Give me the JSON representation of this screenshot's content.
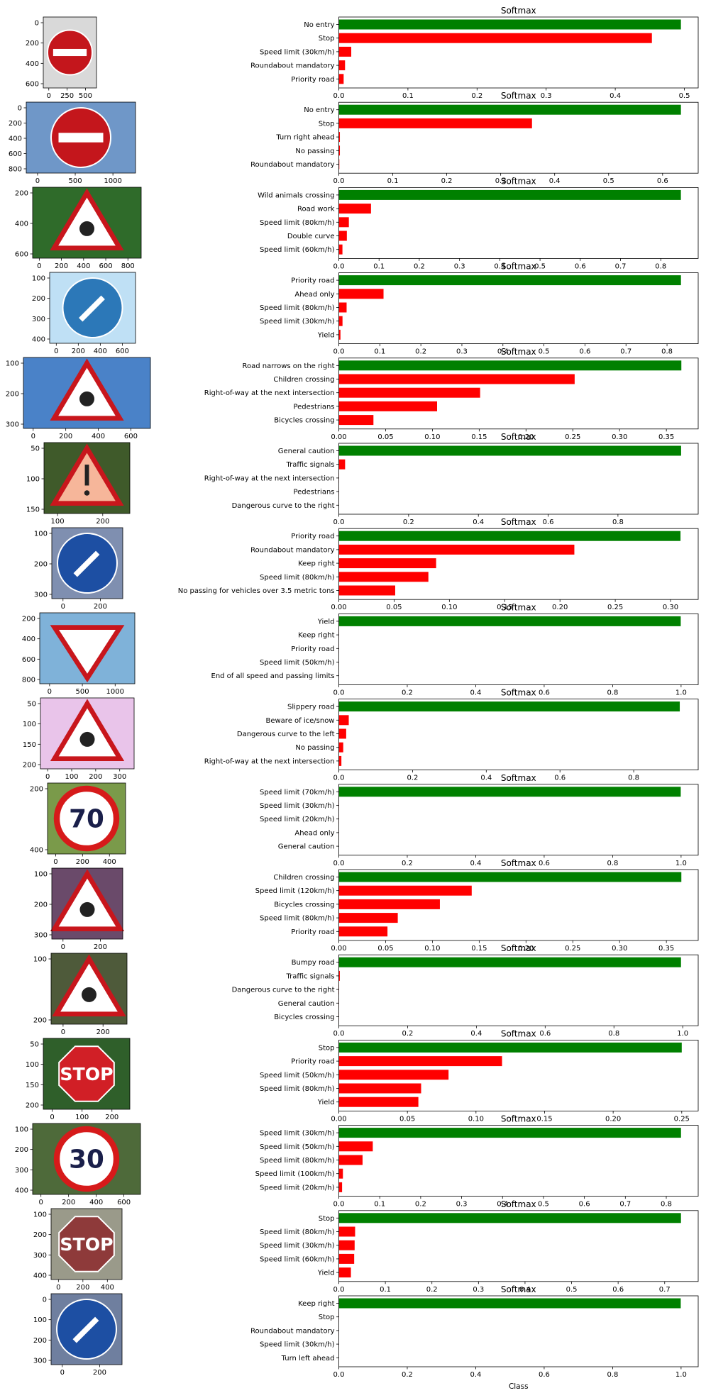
{
  "colors": {
    "top": "#008000",
    "other": "#ff0000",
    "axis": "#000000",
    "background": "#ffffff"
  },
  "x_axis_label": "Class",
  "chart_data": [
    {
      "type": "bar",
      "orientation": "horizontal",
      "title": "Softmax",
      "categories": [
        "No entry",
        "Stop",
        "Speed limit (30km/h)",
        "Roundabout mandatory",
        "Priority road"
      ],
      "values": [
        0.495,
        0.453,
        0.018,
        0.009,
        0.007
      ],
      "xlim": [
        0,
        0.52
      ],
      "xticks": [
        "0.0",
        "0.1",
        "0.2",
        "0.3",
        "0.4",
        "0.5"
      ],
      "image": {
        "sign": "no-entry",
        "xticks": [
          "0",
          "250",
          "500"
        ],
        "yticks": [
          "0",
          "200",
          "400",
          "600"
        ]
      }
    },
    {
      "type": "bar",
      "orientation": "horizontal",
      "title": "Softmax",
      "categories": [
        "No entry",
        "Stop",
        "Turn right ahead",
        "No passing",
        "Roundabout mandatory"
      ],
      "values": [
        0.634,
        0.358,
        0.002,
        0.002,
        0.001
      ],
      "xlim": [
        0,
        0.666
      ],
      "xticks": [
        "0.0",
        "0.1",
        "0.2",
        "0.3",
        "0.4",
        "0.5",
        "0.6"
      ],
      "image": {
        "sign": "no-entry-sky",
        "xticks": [
          "0",
          "500",
          "1000"
        ],
        "yticks": [
          "0",
          "200",
          "400",
          "600",
          "800"
        ]
      }
    },
    {
      "type": "bar",
      "orientation": "horizontal",
      "title": "Softmax",
      "categories": [
        "Wild animals crossing",
        "Road work",
        "Speed limit (80km/h)",
        "Double curve",
        "Speed limit (60km/h)"
      ],
      "values": [
        0.85,
        0.08,
        0.025,
        0.02,
        0.009
      ],
      "xlim": [
        0,
        0.893
      ],
      "xticks": [
        "0.0",
        "0.1",
        "0.2",
        "0.3",
        "0.4",
        "0.5",
        "0.6",
        "0.7",
        "0.8"
      ],
      "image": {
        "sign": "road-work",
        "xticks": [
          "0",
          "200",
          "400",
          "600",
          "800"
        ],
        "yticks": [
          "200",
          "400",
          "600"
        ]
      }
    },
    {
      "type": "bar",
      "orientation": "horizontal",
      "title": "Softmax",
      "categories": [
        "Priority road",
        "Ahead only",
        "Speed limit (80km/h)",
        "Speed limit (30km/h)",
        "Yield"
      ],
      "values": [
        0.834,
        0.109,
        0.019,
        0.009,
        0.004
      ],
      "xlim": [
        0,
        0.876
      ],
      "xticks": [
        "0.0",
        "0.1",
        "0.2",
        "0.3",
        "0.4",
        "0.5",
        "0.6",
        "0.7",
        "0.8"
      ],
      "image": {
        "sign": "turn-right",
        "xticks": [
          "0",
          "200",
          "400",
          "600"
        ],
        "yticks": [
          "100",
          "200",
          "300",
          "400"
        ]
      }
    },
    {
      "type": "bar",
      "orientation": "horizontal",
      "title": "Softmax",
      "categories": [
        "Road narrows on the right",
        "Children crossing",
        "Right-of-way at the next intersection",
        "Pedestrians",
        "Bicycles crossing"
      ],
      "values": [
        0.366,
        0.252,
        0.151,
        0.105,
        0.037
      ],
      "xlim": [
        0,
        0.384
      ],
      "xticks": [
        "0.00",
        "0.05",
        "0.10",
        "0.15",
        "0.20",
        "0.25",
        "0.30",
        "0.35"
      ],
      "image": {
        "sign": "children-sky",
        "xticks": [
          "0",
          "200",
          "400",
          "600"
        ],
        "yticks": [
          "100",
          "200",
          "300"
        ]
      }
    },
    {
      "type": "bar",
      "orientation": "horizontal",
      "title": "Softmax",
      "categories": [
        "General caution",
        "Traffic signals",
        "Right-of-way at the next intersection",
        "Pedestrians",
        "Dangerous curve to the right"
      ],
      "values": [
        0.981,
        0.018,
        0.0005,
        0.0003,
        0.0002
      ],
      "xlim": [
        0,
        1.03
      ],
      "xticks": [
        "0.0",
        "0.2",
        "0.4",
        "0.6",
        "0.8"
      ],
      "image": {
        "sign": "general-caution",
        "xticks": [
          "100",
          "200"
        ],
        "yticks": [
          "50",
          "100",
          "150"
        ]
      }
    },
    {
      "type": "bar",
      "orientation": "horizontal",
      "title": "Softmax",
      "categories": [
        "Priority road",
        "Roundabout mandatory",
        "Keep right",
        "Speed limit (80km/h)",
        "No passing for vehicles over 3.5 metric tons"
      ],
      "values": [
        0.309,
        0.213,
        0.088,
        0.081,
        0.051
      ],
      "xlim": [
        0,
        0.325
      ],
      "xticks": [
        "0.00",
        "0.05",
        "0.10",
        "0.15",
        "0.20",
        "0.25",
        "0.30"
      ],
      "image": {
        "sign": "roundabout",
        "xticks": [
          "0",
          "200"
        ],
        "yticks": [
          "100",
          "200",
          "300"
        ]
      }
    },
    {
      "type": "bar",
      "orientation": "horizontal",
      "title": "Softmax",
      "categories": [
        "Yield",
        "Keep right",
        "Priority road",
        "Speed limit (50km/h)",
        "End of all speed and passing limits"
      ],
      "values": [
        0.999,
        0.0004,
        0.0003,
        0.0002,
        0.0001
      ],
      "xlim": [
        0,
        1.05
      ],
      "xticks": [
        "0.0",
        "0.2",
        "0.4",
        "0.6",
        "0.8",
        "1.0"
      ],
      "image": {
        "sign": "yield",
        "xticks": [
          "0",
          "500",
          "1000"
        ],
        "yticks": [
          "200",
          "400",
          "600",
          "800"
        ]
      }
    },
    {
      "type": "bar",
      "orientation": "horizontal",
      "title": "Softmax",
      "categories": [
        "Slippery road",
        "Beware of ice/snow",
        "Dangerous curve to the left",
        "No passing",
        "Right-of-way at the next intersection"
      ],
      "values": [
        0.925,
        0.027,
        0.02,
        0.012,
        0.007
      ],
      "xlim": [
        0,
        0.975
      ],
      "xticks": [
        "0.0",
        "0.2",
        "0.4",
        "0.6",
        "0.8"
      ],
      "image": {
        "sign": "slippery",
        "xticks": [
          "0",
          "100",
          "200",
          "300"
        ],
        "yticks": [
          "50",
          "100",
          "150",
          "200"
        ]
      }
    },
    {
      "type": "bar",
      "orientation": "horizontal",
      "title": "Softmax",
      "categories": [
        "Speed limit (70km/h)",
        "Speed limit (30km/h)",
        "Speed limit (20km/h)",
        "Ahead only",
        "General caution"
      ],
      "values": [
        0.999,
        0.0005,
        0.0003,
        0.0002,
        0.0001
      ],
      "xlim": [
        0,
        1.05
      ],
      "xticks": [
        "0.0",
        "0.2",
        "0.4",
        "0.6",
        "0.8",
        "1.0"
      ],
      "image": {
        "sign": "speed-70",
        "xticks": [
          "0",
          "200",
          "400"
        ],
        "yticks": [
          "200",
          "400"
        ]
      }
    },
    {
      "type": "bar",
      "orientation": "horizontal",
      "title": "Softmax",
      "categories": [
        "Children crossing",
        "Speed limit (120km/h)",
        "Bicycles crossing",
        "Speed limit (80km/h)",
        "Priority road"
      ],
      "values": [
        0.366,
        0.142,
        0.108,
        0.063,
        0.052
      ],
      "xlim": [
        0,
        0.384
      ],
      "xticks": [
        "0.00",
        "0.05",
        "0.10",
        "0.15",
        "0.20",
        "0.25",
        "0.30",
        "0.35"
      ],
      "image": {
        "sign": "children-tree",
        "xticks": [
          "0",
          "200"
        ],
        "yticks": [
          "100",
          "200",
          "300"
        ]
      }
    },
    {
      "type": "bar",
      "orientation": "horizontal",
      "title": "Softmax",
      "categories": [
        "Bumpy road",
        "Traffic signals",
        "Dangerous curve to the right",
        "General caution",
        "Bicycles crossing"
      ],
      "values": [
        0.995,
        0.003,
        0.001,
        0.0005,
        0.0003
      ],
      "xlim": [
        0,
        1.045
      ],
      "xticks": [
        "0.0",
        "0.2",
        "0.4",
        "0.6",
        "0.8",
        "1.0"
      ],
      "image": {
        "sign": "bumpy",
        "xticks": [
          "0",
          "200"
        ],
        "yticks": [
          "100",
          "200"
        ]
      }
    },
    {
      "type": "bar",
      "orientation": "horizontal",
      "title": "Softmax",
      "categories": [
        "Stop",
        "Priority road",
        "Speed limit (50km/h)",
        "Speed limit (80km/h)",
        "Yield"
      ],
      "values": [
        0.25,
        0.119,
        0.08,
        0.06,
        0.058
      ],
      "xlim": [
        0,
        0.262
      ],
      "xticks": [
        "0.00",
        "0.05",
        "0.10",
        "0.15",
        "0.20",
        "0.25"
      ],
      "image": {
        "sign": "stop-bright",
        "xticks": [
          "0",
          "100",
          "200"
        ],
        "yticks": [
          "50",
          "100",
          "150",
          "200"
        ]
      }
    },
    {
      "type": "bar",
      "orientation": "horizontal",
      "title": "Softmax",
      "categories": [
        "Speed limit (30km/h)",
        "Speed limit (50km/h)",
        "Speed limit (80km/h)",
        "Speed limit (100km/h)",
        "Speed limit (20km/h)"
      ],
      "values": [
        0.836,
        0.083,
        0.058,
        0.01,
        0.008
      ],
      "xlim": [
        0,
        0.878
      ],
      "xticks": [
        "0.0",
        "0.1",
        "0.2",
        "0.3",
        "0.4",
        "0.5",
        "0.6",
        "0.7",
        "0.8"
      ],
      "image": {
        "sign": "speed-30",
        "xticks": [
          "0",
          "200",
          "400",
          "600"
        ],
        "yticks": [
          "100",
          "200",
          "300",
          "400"
        ]
      }
    },
    {
      "type": "bar",
      "orientation": "horizontal",
      "title": "Softmax",
      "categories": [
        "Stop",
        "Speed limit (80km/h)",
        "Speed limit (30km/h)",
        "Speed limit (60km/h)",
        "Yield"
      ],
      "values": [
        0.735,
        0.035,
        0.034,
        0.033,
        0.026
      ],
      "xlim": [
        0,
        0.772
      ],
      "xticks": [
        "0.0",
        "0.1",
        "0.2",
        "0.3",
        "0.4",
        "0.5",
        "0.6",
        "0.7"
      ],
      "image": {
        "sign": "stop-faded",
        "xticks": [
          "0",
          "200",
          "400"
        ],
        "yticks": [
          "100",
          "200",
          "300",
          "400"
        ]
      }
    },
    {
      "type": "bar",
      "orientation": "horizontal",
      "title": "Softmax",
      "categories": [
        "Keep right",
        "Stop",
        "Roundabout mandatory",
        "Speed limit (30km/h)",
        "Turn left ahead"
      ],
      "values": [
        0.999,
        0.0003,
        0.0002,
        0.0001,
        0.0001
      ],
      "xlim": [
        0,
        1.05
      ],
      "xticks": [
        "0.0",
        "0.2",
        "0.4",
        "0.6",
        "0.8",
        "1.0"
      ],
      "image": {
        "sign": "keep-right",
        "xticks": [
          "0",
          "200"
        ],
        "yticks": [
          "0",
          "100",
          "200",
          "300"
        ]
      }
    }
  ]
}
